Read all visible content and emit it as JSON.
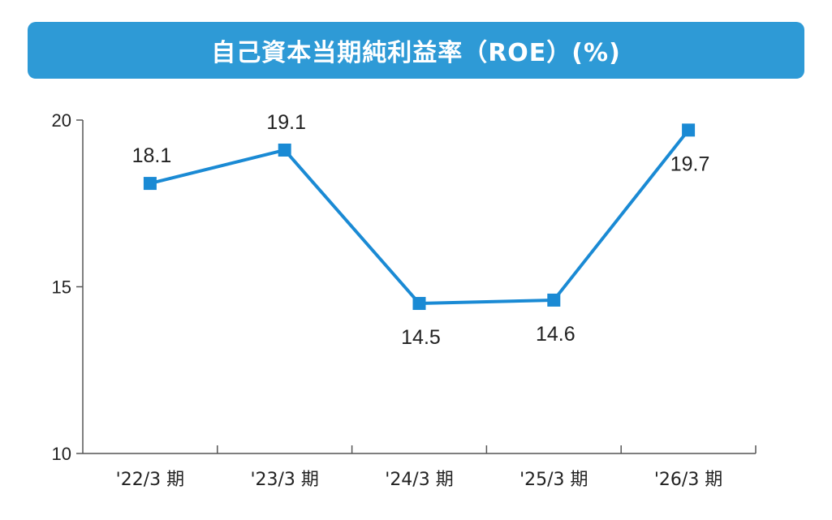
{
  "chart_data": {
    "type": "line",
    "title": "自己資本当期純利益率（ROE）(%)",
    "categories": [
      "'22/3 期",
      "'23/3 期",
      "'24/3 期",
      "'25/3 期",
      "'26/3 期"
    ],
    "series": [
      {
        "values": [
          18.1,
          19.1,
          14.5,
          14.6,
          19.7
        ],
        "color": "#1a8ad4"
      }
    ],
    "data_labels": [
      "18.1",
      "19.1",
      "14.5",
      "14.6",
      "19.7"
    ],
    "label_positions": [
      "above",
      "above",
      "below",
      "below",
      "below"
    ],
    "ylim": [
      10,
      20
    ],
    "yticks": [
      10,
      15,
      20
    ],
    "ytick_labels": [
      "10",
      "15",
      "20"
    ],
    "xlabel": "",
    "ylabel": "",
    "grid": false,
    "legend": "none"
  },
  "colors": {
    "banner": "#2e9ad6",
    "line": "#1a8ad4",
    "axis": "#555555"
  }
}
